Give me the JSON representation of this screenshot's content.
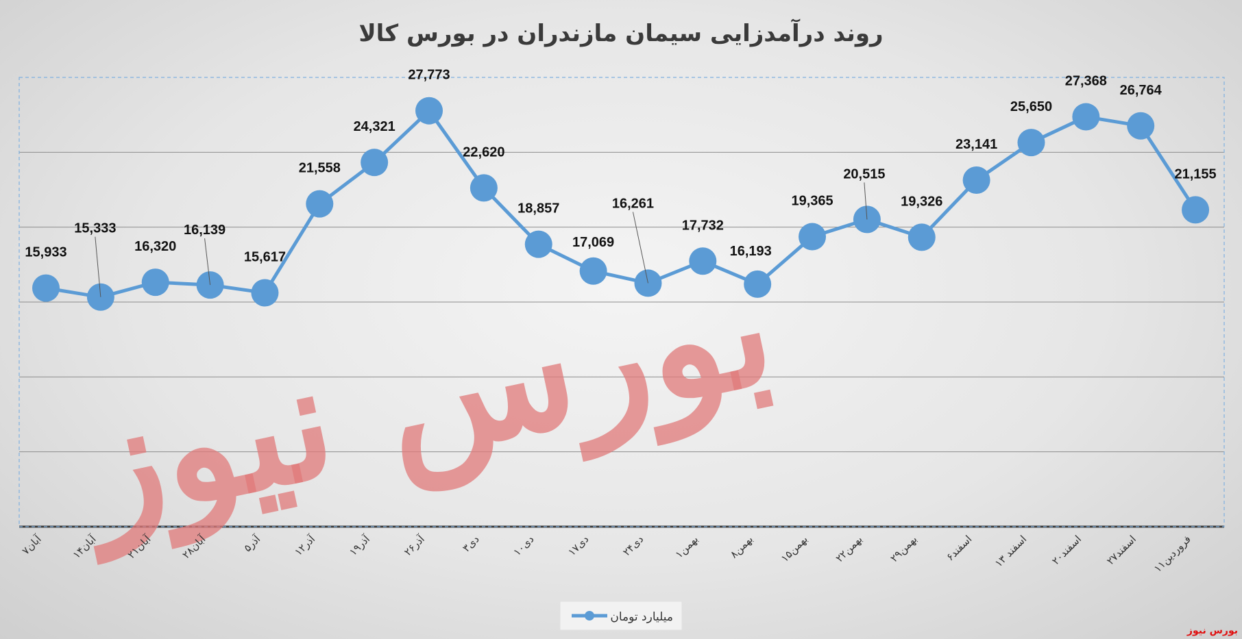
{
  "chart_data": {
    "type": "line",
    "title": "روند درآمدزایی سیمان مازندران در بورس کالا",
    "categories": [
      "۷آبان",
      "۱۴آبان",
      "۲۱آبان",
      "۲۸آبان",
      "۵آذر",
      "۱۲آذر",
      "۱۹آذر",
      "۲۶آذر",
      "۳دی",
      "۱۰دی",
      "۱۷دی",
      "۲۴دی",
      "۱بهمن",
      "۸بهمن",
      "۱۵بهمن",
      "۲۲بهمن",
      "۲۹بهمن",
      "۶اسفند",
      "۱۳ اسفند",
      "۲۰اسفند",
      "۲۷اسفند",
      "۱۱فروردین"
    ],
    "series": [
      {
        "name": "میلیارد تومان",
        "values": [
          15933,
          15333,
          16320,
          16139,
          15617,
          21558,
          24321,
          27773,
          22620,
          18857,
          17069,
          16261,
          17732,
          16193,
          19365,
          20515,
          19326,
          23141,
          25650,
          27368,
          26764,
          21155
        ],
        "labels": [
          "15,933",
          "15,333",
          "16,320",
          "16,139",
          "15,617",
          "21,558",
          "24,321",
          "27,773",
          "22,620",
          "18,857",
          "17,069",
          "16,261",
          "17,732",
          "16,193",
          "19,365",
          "20,515",
          "19,326",
          "23,141",
          "25,650",
          "27,368",
          "26,764",
          "21,155"
        ]
      }
    ],
    "ylim": [
      0,
      30000
    ],
    "grid": true,
    "legend": "bottom-center",
    "colors": {
      "line": "#5b9bd5",
      "grid": "#8c8c8c",
      "plot_border": "#7fb0e0"
    }
  },
  "watermark": "بورس نیوز",
  "brand": "بورس نیوز"
}
